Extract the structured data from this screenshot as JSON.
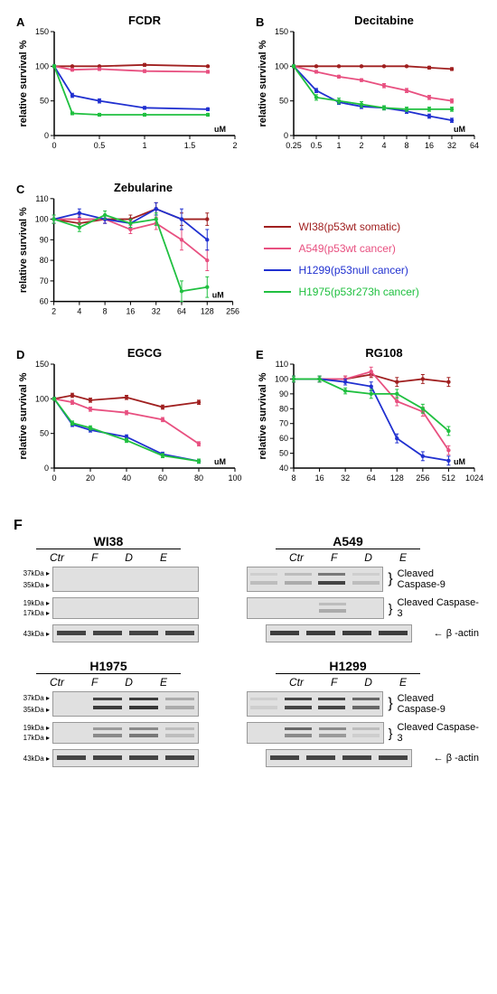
{
  "colors": {
    "WI38": "#a02020",
    "A549": "#e85080",
    "H1299": "#2030d0",
    "H1975": "#20c040",
    "axis": "#000000",
    "grid": "#ffffff",
    "band_dark": "#2a2a2a",
    "band_light": "#888888",
    "blot_bg": "#e8e8e8"
  },
  "legend": [
    {
      "label": "WI38(p53wt somatic)",
      "color": "#a02020"
    },
    {
      "label": "A549(p53wt cancer)",
      "color": "#e85080"
    },
    {
      "label": "H1299(p53null cancer)",
      "color": "#2030d0"
    },
    {
      "label": "H1975(p53r273h cancer)",
      "color": "#20c040"
    }
  ],
  "panels": {
    "A": {
      "title": "FCDR",
      "ylabel": "relative survival %",
      "xlabel": "uM",
      "xlim": [
        0,
        2.0
      ],
      "xticks": [
        0.0,
        0.5,
        1.0,
        1.5,
        2.0
      ],
      "ylim": [
        0,
        150
      ],
      "yticks": [
        0,
        50,
        100,
        150
      ],
      "series": {
        "WI38": {
          "x": [
            0,
            0.2,
            0.5,
            1.0,
            1.7
          ],
          "y": [
            100,
            100,
            100,
            102,
            100
          ],
          "err": [
            1,
            1,
            1,
            2,
            1
          ]
        },
        "A549": {
          "x": [
            0,
            0.2,
            0.5,
            1.0,
            1.7
          ],
          "y": [
            100,
            95,
            96,
            93,
            92
          ],
          "err": [
            1,
            2,
            2,
            2,
            2
          ]
        },
        "H1299": {
          "x": [
            0,
            0.2,
            0.5,
            1.0,
            1.7
          ],
          "y": [
            100,
            58,
            50,
            40,
            38
          ],
          "err": [
            2,
            3,
            3,
            2,
            2
          ]
        },
        "H1975": {
          "x": [
            0,
            0.2,
            0.5,
            1.0,
            1.7
          ],
          "y": [
            100,
            32,
            30,
            30,
            30
          ],
          "err": [
            2,
            2,
            2,
            2,
            2
          ]
        }
      }
    },
    "B": {
      "title": "Decitabine",
      "ylabel": "relative survival %",
      "xlabel": "uM",
      "xlog": true,
      "xlim": [
        0.25,
        64
      ],
      "xticks": [
        0.25,
        0.5,
        1,
        2,
        4,
        8,
        16,
        32,
        64
      ],
      "ylim": [
        0,
        150
      ],
      "yticks": [
        0,
        50,
        100,
        150
      ],
      "series": {
        "WI38": {
          "x": [
            0.25,
            0.5,
            1,
            2,
            4,
            8,
            16,
            32
          ],
          "y": [
            100,
            100,
            100,
            100,
            100,
            100,
            98,
            96
          ],
          "err": [
            1,
            1,
            1,
            1,
            1,
            1,
            2,
            2
          ]
        },
        "A549": {
          "x": [
            0.25,
            0.5,
            1,
            2,
            4,
            8,
            16,
            32
          ],
          "y": [
            100,
            92,
            85,
            80,
            72,
            65,
            55,
            50
          ],
          "err": [
            2,
            2,
            2,
            2,
            3,
            3,
            3,
            3
          ]
        },
        "H1299": {
          "x": [
            0.25,
            0.5,
            1,
            2,
            4,
            8,
            16,
            32
          ],
          "y": [
            100,
            65,
            48,
            42,
            40,
            35,
            28,
            22
          ],
          "err": [
            2,
            3,
            3,
            3,
            3,
            3,
            3,
            3
          ]
        },
        "H1975": {
          "x": [
            0.25,
            0.5,
            1,
            2,
            4,
            8,
            16,
            32
          ],
          "y": [
            100,
            55,
            50,
            45,
            40,
            38,
            38,
            38
          ],
          "err": [
            2,
            4,
            4,
            4,
            3,
            3,
            3,
            3
          ]
        }
      }
    },
    "C": {
      "title": "Zebularine",
      "ylabel": "relative survival %",
      "xlabel": "uM",
      "xlog": true,
      "xlim": [
        2,
        256
      ],
      "xticks": [
        2,
        4,
        8,
        16,
        32,
        64,
        128,
        256
      ],
      "ylim": [
        60,
        110
      ],
      "yticks": [
        60,
        70,
        80,
        90,
        100,
        110
      ],
      "series": {
        "WI38": {
          "x": [
            2,
            4,
            8,
            16,
            32,
            64,
            128
          ],
          "y": [
            100,
            98,
            100,
            100,
            105,
            100,
            100
          ],
          "err": [
            2,
            2,
            2,
            2,
            3,
            3,
            3
          ]
        },
        "A549": {
          "x": [
            2,
            4,
            8,
            16,
            32,
            64,
            128
          ],
          "y": [
            100,
            100,
            100,
            95,
            98,
            90,
            80
          ],
          "err": [
            2,
            2,
            2,
            2,
            3,
            5,
            5
          ]
        },
        "H1299": {
          "x": [
            2,
            4,
            8,
            16,
            32,
            64,
            128
          ],
          "y": [
            100,
            103,
            100,
            98,
            105,
            100,
            90
          ],
          "err": [
            2,
            2,
            2,
            2,
            3,
            5,
            5
          ]
        },
        "H1975": {
          "x": [
            2,
            4,
            8,
            16,
            32,
            64,
            128
          ],
          "y": [
            100,
            96,
            102,
            98,
            100,
            65,
            67
          ],
          "err": [
            2,
            2,
            2,
            2,
            3,
            5,
            5
          ]
        }
      }
    },
    "D": {
      "title": "EGCG",
      "ylabel": "relative survival %",
      "xlabel": "uM",
      "xlim": [
        0,
        100
      ],
      "xticks": [
        0,
        20,
        40,
        60,
        80,
        100
      ],
      "ylim": [
        0,
        150
      ],
      "yticks": [
        0,
        50,
        100,
        150
      ],
      "series": {
        "WI38": {
          "x": [
            0,
            10,
            20,
            40,
            60,
            80
          ],
          "y": [
            100,
            105,
            98,
            102,
            88,
            95
          ],
          "err": [
            2,
            3,
            3,
            3,
            3,
            3
          ]
        },
        "A549": {
          "x": [
            0,
            10,
            20,
            40,
            60,
            80
          ],
          "y": [
            100,
            95,
            85,
            80,
            70,
            35
          ],
          "err": [
            2,
            3,
            3,
            3,
            3,
            3
          ]
        },
        "H1299": {
          "x": [
            0,
            10,
            20,
            40,
            60,
            80
          ],
          "y": [
            100,
            63,
            55,
            45,
            20,
            10
          ],
          "err": [
            2,
            3,
            3,
            3,
            3,
            3
          ]
        },
        "H1975": {
          "x": [
            0,
            10,
            20,
            40,
            60,
            80
          ],
          "y": [
            100,
            65,
            58,
            40,
            18,
            10
          ],
          "err": [
            2,
            3,
            3,
            3,
            3,
            3
          ]
        }
      }
    },
    "E": {
      "title": "RG108",
      "ylabel": "relative survival %",
      "xlabel": "uM",
      "xlog": true,
      "xlim": [
        8,
        1024
      ],
      "xticks": [
        8,
        16,
        32,
        64,
        128,
        256,
        512,
        1024
      ],
      "ylim": [
        40,
        110
      ],
      "yticks": [
        40,
        50,
        60,
        70,
        80,
        90,
        100,
        110
      ],
      "series": {
        "WI38": {
          "x": [
            8,
            16,
            32,
            64,
            128,
            256,
            512
          ],
          "y": [
            100,
            100,
            100,
            103,
            98,
            100,
            98
          ],
          "err": [
            2,
            2,
            2,
            2,
            3,
            3,
            3
          ]
        },
        "A549": {
          "x": [
            8,
            16,
            32,
            64,
            128,
            256,
            512
          ],
          "y": [
            100,
            100,
            100,
            105,
            85,
            78,
            52
          ],
          "err": [
            2,
            2,
            2,
            3,
            3,
            3,
            3
          ]
        },
        "H1299": {
          "x": [
            8,
            16,
            32,
            64,
            128,
            256,
            512
          ],
          "y": [
            100,
            100,
            98,
            95,
            60,
            48,
            45
          ],
          "err": [
            2,
            2,
            2,
            3,
            3,
            3,
            3
          ]
        },
        "H1975": {
          "x": [
            8,
            16,
            32,
            64,
            128,
            256,
            512
          ],
          "y": [
            100,
            100,
            92,
            90,
            90,
            80,
            65
          ],
          "err": [
            2,
            2,
            2,
            3,
            3,
            3,
            3
          ]
        }
      }
    }
  },
  "panelF": {
    "label": "F",
    "mw": {
      "casp9": [
        "37kDa",
        "35kDa"
      ],
      "casp3": [
        "19kDa",
        "17kDa"
      ],
      "actin": [
        "43kDa"
      ]
    },
    "colLabels": [
      "Ctr",
      "F",
      "D",
      "E"
    ],
    "rowLabels": {
      "casp9": "Cleaved\nCaspase-9",
      "casp3": "Cleaved\nCaspase-3",
      "actin": "β -actin"
    },
    "groups": [
      {
        "name": "WI38",
        "casp9": [
          [
            0,
            0
          ],
          [
            0,
            0
          ],
          [
            0,
            0
          ],
          [
            0,
            0
          ]
        ],
        "casp3": [
          [
            0,
            0
          ],
          [
            0,
            0
          ],
          [
            0,
            0
          ],
          [
            0,
            0
          ]
        ],
        "actin": [
          0.9,
          0.9,
          0.9,
          0.9
        ]
      },
      {
        "name": "A549",
        "casp9": [
          [
            0.1,
            0.2
          ],
          [
            0.2,
            0.3
          ],
          [
            0.6,
            0.9
          ],
          [
            0.1,
            0.2
          ]
        ],
        "casp3": [
          [
            0,
            0
          ],
          [
            0,
            0
          ],
          [
            0.2,
            0.3
          ],
          [
            0,
            0
          ]
        ],
        "actin": [
          0.95,
          0.95,
          0.95,
          0.95
        ]
      },
      {
        "name": "H1975",
        "casp9": [
          [
            0,
            0
          ],
          [
            0.9,
            0.95
          ],
          [
            0.95,
            0.98
          ],
          [
            0.3,
            0.3
          ]
        ],
        "casp3": [
          [
            0,
            0
          ],
          [
            0.4,
            0.5
          ],
          [
            0.5,
            0.6
          ],
          [
            0.2,
            0.2
          ]
        ],
        "actin": [
          0.9,
          0.9,
          0.9,
          0.9
        ]
      },
      {
        "name": "H1299",
        "casp9": [
          [
            0.1,
            0.1
          ],
          [
            0.9,
            0.9
          ],
          [
            0.9,
            0.9
          ],
          [
            0.7,
            0.7
          ]
        ],
        "casp3": [
          [
            0,
            0
          ],
          [
            0.7,
            0.5
          ],
          [
            0.5,
            0.4
          ],
          [
            0.2,
            0.1
          ]
        ],
        "actin": [
          0.9,
          0.9,
          0.9,
          0.9
        ]
      }
    ]
  }
}
